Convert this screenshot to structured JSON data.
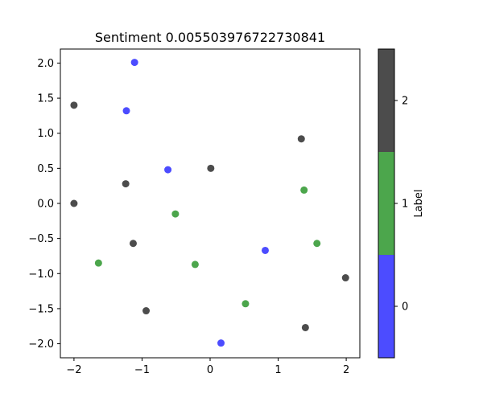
{
  "chart_data": {
    "type": "scatter",
    "title": "Sentiment 0.005503976722730841",
    "xlabel": "",
    "ylabel": "",
    "xlim": [
      -2.2,
      2.2
    ],
    "ylim": [
      -2.2,
      2.2
    ],
    "xticks": [
      -2,
      -1,
      0,
      1,
      2
    ],
    "yticks": [
      -2.0,
      -1.5,
      -1.0,
      -0.5,
      0.0,
      0.5,
      1.0,
      1.5,
      2.0
    ],
    "xtick_labels": [
      "−2",
      "−1",
      "0",
      "1",
      "2"
    ],
    "ytick_labels": [
      "−2.0",
      "−1.5",
      "−1.0",
      "−0.5",
      "0.0",
      "0.5",
      "1.0",
      "1.5",
      "2.0"
    ],
    "grid": false,
    "point_alpha": 0.7,
    "colorbar": {
      "label": "Label",
      "ticks": [
        "0",
        "1",
        "2"
      ],
      "colors": [
        "#0000ff",
        "#008000",
        "#000000"
      ]
    },
    "points": [
      {
        "x": -1.11,
        "y": 2.01,
        "label": 0
      },
      {
        "x": -1.23,
        "y": 1.32,
        "label": 0
      },
      {
        "x": -0.62,
        "y": 0.48,
        "label": 0
      },
      {
        "x": 0.81,
        "y": -0.67,
        "label": 0
      },
      {
        "x": 0.16,
        "y": -1.99,
        "label": 0
      },
      {
        "x": 1.38,
        "y": 0.19,
        "label": 1
      },
      {
        "x": -0.51,
        "y": -0.15,
        "label": 1
      },
      {
        "x": 1.57,
        "y": -0.57,
        "label": 1
      },
      {
        "x": -1.64,
        "y": -0.85,
        "label": 1
      },
      {
        "x": -0.22,
        "y": -0.87,
        "label": 1
      },
      {
        "x": 0.52,
        "y": -1.43,
        "label": 1
      },
      {
        "x": -2.0,
        "y": 1.4,
        "label": 2
      },
      {
        "x": 1.34,
        "y": 0.92,
        "label": 2
      },
      {
        "x": 0.01,
        "y": 0.5,
        "label": 2
      },
      {
        "x": -1.24,
        "y": 0.28,
        "label": 2
      },
      {
        "x": -2.0,
        "y": 0.0,
        "label": 2
      },
      {
        "x": -1.13,
        "y": -0.57,
        "label": 2
      },
      {
        "x": 1.99,
        "y": -1.06,
        "label": 2
      },
      {
        "x": -0.94,
        "y": -1.53,
        "label": 2
      },
      {
        "x": 1.4,
        "y": -1.77,
        "label": 2
      }
    ]
  }
}
